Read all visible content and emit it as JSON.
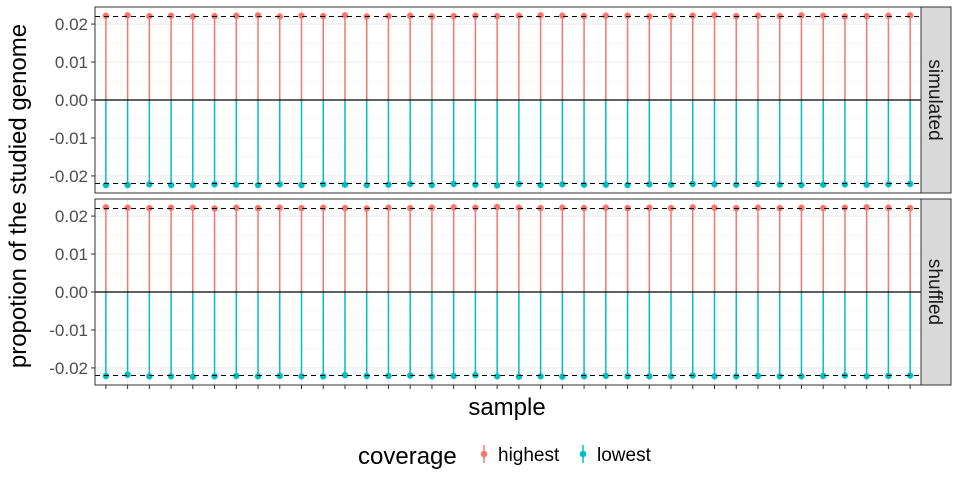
{
  "chart_data": {
    "type": "lollipop",
    "ylabel": "propotion of the studied genome",
    "xlabel": "sample",
    "ylim": [
      -0.0245,
      0.0245
    ],
    "y_ticks": [
      0.02,
      0.01,
      0.0,
      -0.01,
      -0.02
    ],
    "y_tick_labels": [
      "0.02",
      "0.01",
      "0.00",
      "-0.01",
      "-0.02"
    ],
    "reference_lines": [
      0.022,
      -0.022
    ],
    "grid": true,
    "n_samples": 38,
    "legend": {
      "title": "coverage",
      "position": "bottom",
      "entries": [
        {
          "label": "highest",
          "color": "#F8766D"
        },
        {
          "label": "lowest",
          "color": "#00BFC4"
        }
      ]
    },
    "panels": [
      {
        "label": "simulated",
        "series": [
          {
            "name": "highest",
            "color": "#F8766D",
            "values": [
              0.0222,
              0.0223,
              0.0221,
              0.0222,
              0.022,
              0.0221,
              0.0222,
              0.0223,
              0.022,
              0.0222,
              0.0221,
              0.0223,
              0.022,
              0.0221,
              0.0222,
              0.022,
              0.0221,
              0.0222,
              0.0221,
              0.0222,
              0.0223,
              0.0222,
              0.0221,
              0.0222,
              0.0222,
              0.022,
              0.0221,
              0.0222,
              0.0223,
              0.0221,
              0.0222,
              0.0221,
              0.0223,
              0.0222,
              0.022,
              0.0221,
              0.0222,
              0.0223
            ]
          },
          {
            "name": "lowest",
            "color": "#00BFC4",
            "values": [
              -0.0224,
              -0.0224,
              -0.0222,
              -0.0224,
              -0.0224,
              -0.0222,
              -0.0223,
              -0.0224,
              -0.0222,
              -0.0224,
              -0.0222,
              -0.0223,
              -0.0224,
              -0.0223,
              -0.0221,
              -0.0224,
              -0.0221,
              -0.0223,
              -0.0225,
              -0.0221,
              -0.0224,
              -0.0222,
              -0.0223,
              -0.0223,
              -0.0224,
              -0.0222,
              -0.0223,
              -0.0221,
              -0.0222,
              -0.0223,
              -0.0221,
              -0.0223,
              -0.0224,
              -0.0223,
              -0.0222,
              -0.0223,
              -0.0222,
              -0.0221
            ]
          }
        ]
      },
      {
        "label": "shuffled",
        "series": [
          {
            "name": "highest",
            "color": "#F8766D",
            "values": [
              0.0223,
              0.0222,
              0.0221,
              0.0222,
              0.0222,
              0.022,
              0.0222,
              0.0221,
              0.0222,
              0.0221,
              0.0222,
              0.0221,
              0.022,
              0.0222,
              0.0221,
              0.0222,
              0.0223,
              0.0222,
              0.0224,
              0.0222,
              0.0221,
              0.0222,
              0.0221,
              0.0222,
              0.0221,
              0.0222,
              0.0221,
              0.0223,
              0.0222,
              0.0221,
              0.0222,
              0.0221,
              0.0222,
              0.0221,
              0.0222,
              0.0223,
              0.0222,
              0.0221
            ]
          },
          {
            "name": "lowest",
            "color": "#00BFC4",
            "values": [
              -0.0221,
              -0.0218,
              -0.0222,
              -0.0222,
              -0.0223,
              -0.0222,
              -0.0221,
              -0.0222,
              -0.0221,
              -0.0222,
              -0.0222,
              -0.0219,
              -0.0221,
              -0.0221,
              -0.022,
              -0.0222,
              -0.0221,
              -0.0219,
              -0.0222,
              -0.0223,
              -0.0222,
              -0.0223,
              -0.0222,
              -0.0221,
              -0.0222,
              -0.0222,
              -0.0222,
              -0.022,
              -0.0222,
              -0.0222,
              -0.0221,
              -0.0222,
              -0.0222,
              -0.0221,
              -0.022,
              -0.0222,
              -0.0221,
              -0.022
            ]
          }
        ]
      }
    ]
  }
}
